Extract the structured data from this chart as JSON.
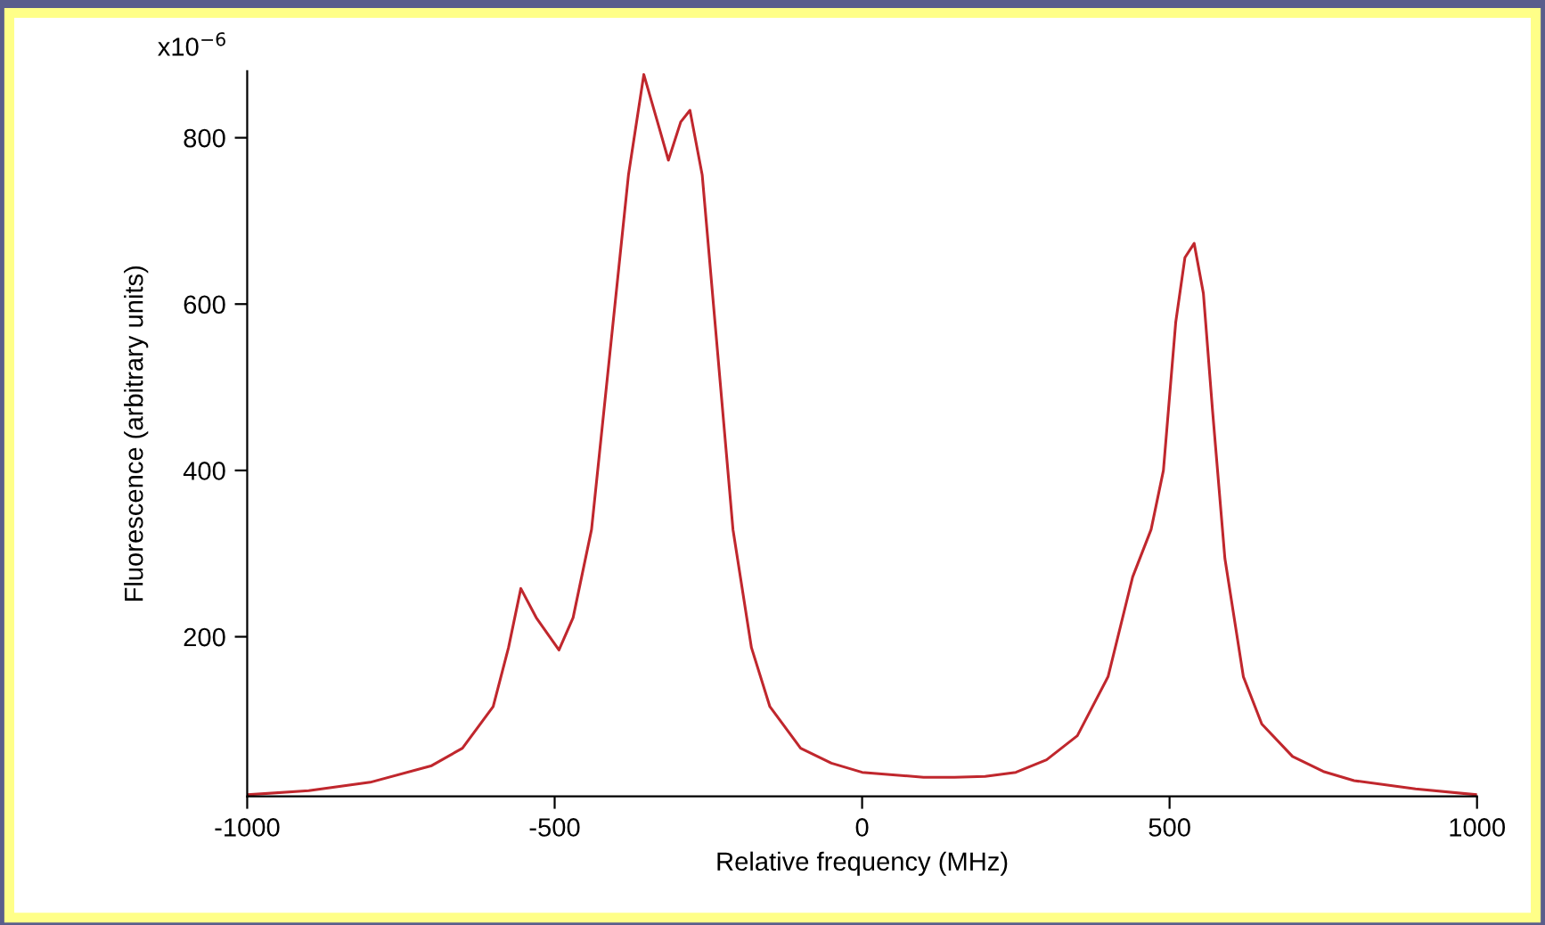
{
  "chart_data": {
    "type": "line",
    "xlabel": "Relative frequency (MHz)",
    "ylabel": "Fluorescence (arbitrary units)",
    "series": [
      {
        "color": "#c0272d",
        "x": [
          -1000,
          -900,
          -800,
          -700,
          -650,
          -600,
          -575,
          -555,
          -530,
          -493,
          -470,
          -440,
          -410,
          -380,
          -355,
          -330,
          -315,
          -295,
          -280,
          -260,
          -235,
          -210,
          -180,
          -150,
          -100,
          -50,
          0,
          50,
          100,
          150,
          200,
          250,
          300,
          350,
          400,
          440,
          470,
          490,
          510,
          525,
          540,
          555,
          570,
          590,
          620,
          650,
          700,
          750,
          800,
          900,
          1000
        ],
        "values": [
          10,
          15,
          25,
          45,
          66,
          116,
          187,
          258,
          223,
          184,
          223,
          329,
          542,
          755,
          876,
          812,
          773,
          819,
          833,
          755,
          542,
          329,
          187,
          116,
          66,
          48,
          37,
          34,
          31,
          31,
          32,
          37,
          52,
          81,
          152,
          272,
          329,
          400,
          578,
          656,
          673,
          613,
          471,
          294,
          152,
          95,
          56,
          38,
          27,
          17,
          10
        ]
      }
    ],
    "xlim": [
      -1000,
      1000
    ],
    "xticks": [
      -1000,
      -500,
      0,
      500,
      1000
    ],
    "ylim": [
      8,
      880
    ],
    "yticks": [
      200,
      400,
      600,
      800
    ],
    "annotations": [
      "x10$^{−6}$"
    ],
    "grid": false,
    "marker": "none",
    "line_style": "solid"
  }
}
